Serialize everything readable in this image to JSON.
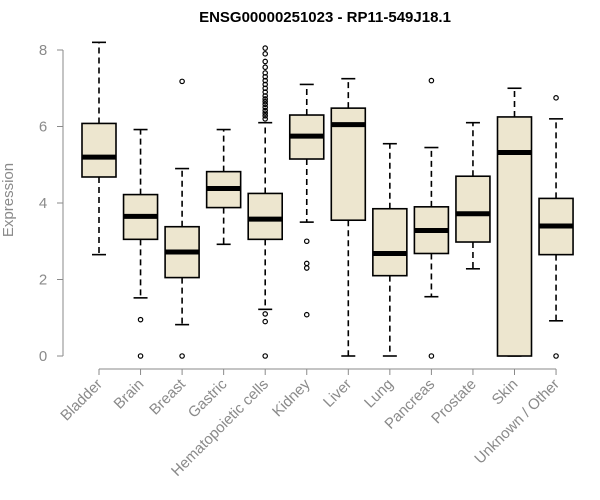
{
  "chart_data": {
    "type": "box",
    "title": "ENSG00000251023 - RP11-549J18.1",
    "xlabel": "",
    "ylabel": "Expression",
    "ylim": [
      0,
      8.2
    ],
    "yticks": [
      0,
      2,
      4,
      6,
      8
    ],
    "grid": false,
    "legend": "none",
    "colors": {
      "box_fill": "#ede6cf",
      "box_stroke": "#000000",
      "median": "#000000",
      "axis": "#8a8a8a"
    },
    "categories": [
      "Bladder",
      "Brain",
      "Breast",
      "Gastric",
      "Hematopoietic cells",
      "Kidney",
      "Liver",
      "Lung",
      "Pancreas",
      "Prostate",
      "Skin",
      "Unknown / Other"
    ],
    "boxes": [
      {
        "name": "Bladder",
        "min": 2.65,
        "q1": 4.68,
        "median": 5.2,
        "q3": 6.08,
        "max": 8.2,
        "outliers": []
      },
      {
        "name": "Brain",
        "min": 1.52,
        "q1": 3.05,
        "median": 3.65,
        "q3": 4.22,
        "max": 5.92,
        "outliers": [
          0.95,
          0.0
        ]
      },
      {
        "name": "Breast",
        "min": 0.82,
        "q1": 2.05,
        "median": 2.72,
        "q3": 3.38,
        "max": 4.9,
        "outliers": [
          7.18,
          0.0
        ]
      },
      {
        "name": "Gastric",
        "min": 2.92,
        "q1": 3.88,
        "median": 4.38,
        "q3": 4.82,
        "max": 5.92,
        "outliers": []
      },
      {
        "name": "Hematopoietic cells",
        "min": 1.22,
        "q1": 3.05,
        "median": 3.58,
        "q3": 4.25,
        "max": 6.1,
        "outliers": [
          8.05,
          7.9,
          7.7,
          7.55,
          7.4,
          7.3,
          7.2,
          7.1,
          7.0,
          6.9,
          6.8,
          6.72,
          6.65,
          6.58,
          6.5,
          6.42,
          6.35,
          6.28,
          6.2,
          1.1,
          0.9,
          0.0
        ]
      },
      {
        "name": "Kidney",
        "min": 3.5,
        "q1": 5.15,
        "median": 5.75,
        "q3": 6.3,
        "max": 7.1,
        "outliers": [
          3.0,
          2.42,
          2.3,
          1.08
        ]
      },
      {
        "name": "Liver",
        "min": 0.0,
        "q1": 3.55,
        "median": 6.05,
        "q3": 6.48,
        "max": 7.25,
        "outliers": []
      },
      {
        "name": "Lung",
        "min": 0.0,
        "q1": 2.1,
        "median": 2.68,
        "q3": 3.85,
        "max": 5.55,
        "outliers": []
      },
      {
        "name": "Pancreas",
        "min": 1.55,
        "q1": 2.68,
        "median": 3.28,
        "q3": 3.9,
        "max": 5.45,
        "outliers": [
          7.2,
          0.0
        ]
      },
      {
        "name": "Prostate",
        "min": 2.28,
        "q1": 2.98,
        "median": 3.72,
        "q3": 4.7,
        "max": 6.1,
        "outliers": []
      },
      {
        "name": "Skin",
        "min": 0.0,
        "q1": 0.0,
        "median": 5.32,
        "q3": 6.25,
        "max": 7.0,
        "outliers": []
      },
      {
        "name": "Unknown / Other",
        "min": 0.92,
        "q1": 2.65,
        "median": 3.4,
        "q3": 4.12,
        "max": 6.2,
        "outliers": [
          6.75,
          0.0
        ]
      }
    ]
  }
}
